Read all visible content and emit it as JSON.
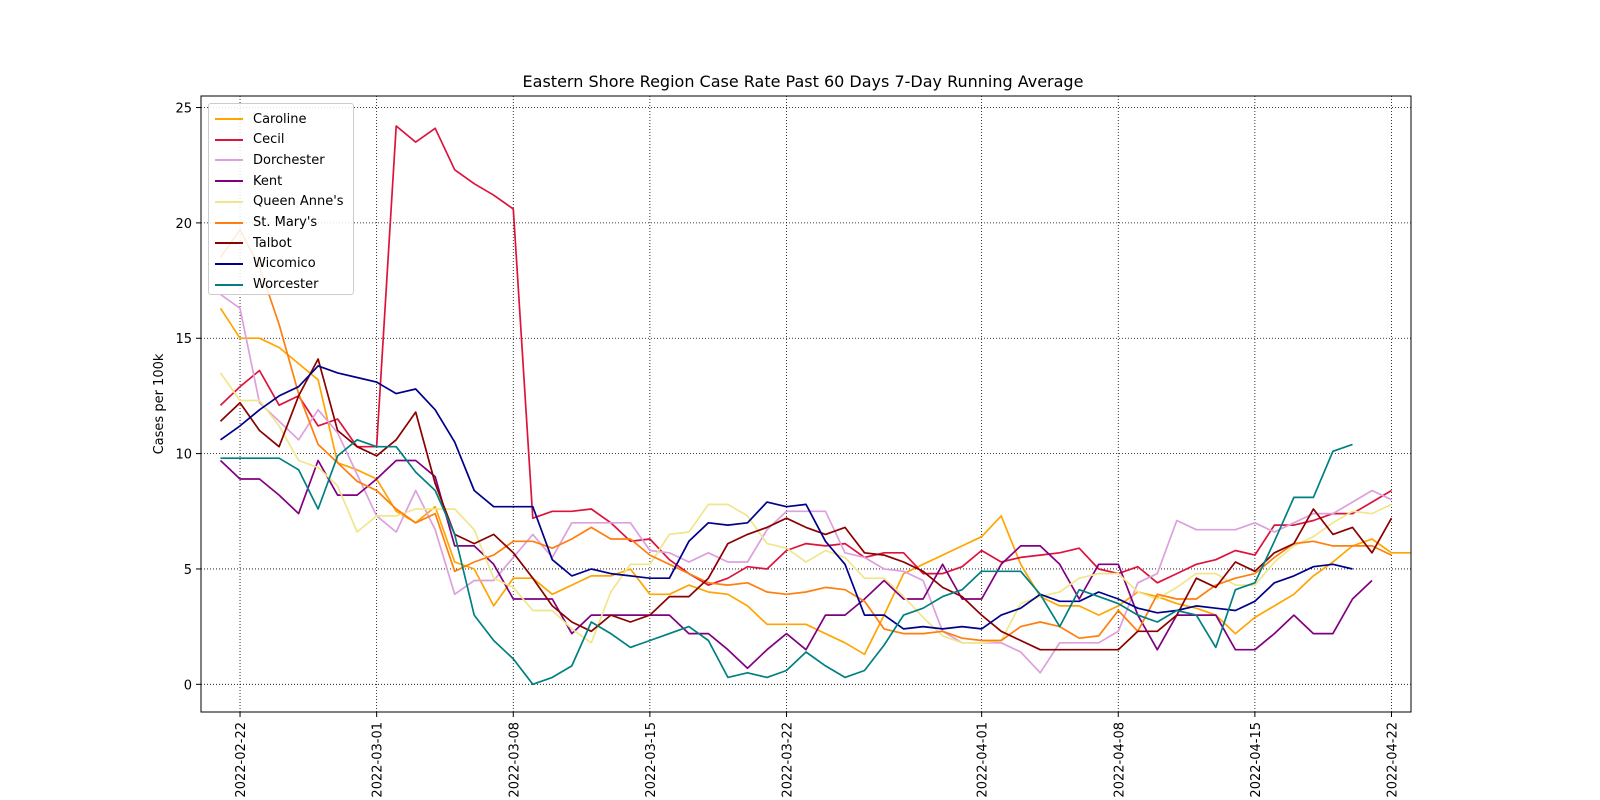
{
  "chart_data": {
    "type": "line",
    "title": "Eastern Shore Region Case Rate  Past 60 Days 7-Day Running Average",
    "ylabel": "Cases per 100k",
    "xlabel": "",
    "xlim": [
      "2022-02-20",
      "2022-04-23"
    ],
    "ylim": [
      -1.2,
      25.5
    ],
    "yticks": [
      0,
      5,
      10,
      15,
      20,
      25
    ],
    "ytick_labels": [
      "0",
      "5",
      "10",
      "15",
      "20",
      "25"
    ],
    "xticks": [
      "2022-02-22",
      "2022-03-01",
      "2022-03-08",
      "2022-03-15",
      "2022-03-22",
      "2022-04-01",
      "2022-04-08",
      "2022-04-15",
      "2022-04-22"
    ],
    "grid": true,
    "legend_position": "upper-left",
    "start_date": "2022-02-21",
    "series": [
      {
        "name": "Caroline",
        "color": "#ffa500",
        "values": [
          16.3,
          15.0,
          15.0,
          14.6,
          13.9,
          13.2,
          9.6,
          9.3,
          8.9,
          7.5,
          7.0,
          7.7,
          5.3,
          5.0,
          3.4,
          4.6,
          4.6,
          3.9,
          4.3,
          4.7,
          4.7,
          5.0,
          3.9,
          3.9,
          4.3,
          4.0,
          3.9,
          3.4,
          2.6,
          2.6,
          2.6,
          2.2,
          1.8,
          1.3,
          3.0,
          4.8,
          5.2,
          5.6,
          6.0,
          6.4,
          7.3,
          5.2,
          3.8,
          3.4,
          3.4,
          3.0,
          3.4,
          4.0,
          3.8,
          3.5,
          3.3,
          3.0,
          2.2,
          2.9,
          3.4,
          3.9,
          4.7,
          5.3,
          6.0,
          6.3,
          5.7,
          5.7
        ]
      },
      {
        "name": "Cecil",
        "color": "#dc143c",
        "values": [
          12.1,
          12.9,
          13.6,
          12.1,
          12.5,
          11.2,
          11.5,
          10.3,
          10.3,
          24.2,
          23.5,
          24.1,
          22.3,
          21.7,
          21.2,
          20.6,
          7.2,
          7.5,
          7.5,
          7.6,
          7.0,
          6.2,
          6.3,
          5.4,
          4.8,
          4.3,
          4.6,
          5.1,
          5.0,
          5.8,
          6.1,
          6.0,
          6.1,
          5.5,
          5.7,
          5.7,
          4.8,
          4.8,
          5.1,
          5.8,
          5.3,
          5.5,
          5.6,
          5.7,
          5.9,
          5.0,
          4.8,
          5.1,
          4.4,
          4.8,
          5.2,
          5.4,
          5.8,
          5.6,
          6.9,
          6.9,
          7.1,
          7.4,
          7.4,
          7.9,
          8.4
        ]
      },
      {
        "name": "Dorchester",
        "color": "#dda0dd",
        "values": [
          16.9,
          16.3,
          12.2,
          11.4,
          10.6,
          11.9,
          10.9,
          9.1,
          7.3,
          6.6,
          8.4,
          6.7,
          3.9,
          4.5,
          4.5,
          5.5,
          6.5,
          5.5,
          7.0,
          7.0,
          7.0,
          7.0,
          5.8,
          5.7,
          5.3,
          5.7,
          5.3,
          5.3,
          6.7,
          7.5,
          7.5,
          7.5,
          5.7,
          5.5,
          5.0,
          4.9,
          4.5,
          2.3,
          1.8,
          1.8,
          1.8,
          1.4,
          0.5,
          1.8,
          1.8,
          1.8,
          2.3,
          4.4,
          4.8,
          7.1,
          6.7,
          6.7,
          6.7,
          7.0,
          6.6,
          7.0,
          7.4,
          7.4,
          7.9,
          8.4,
          8.0
        ]
      },
      {
        "name": "Kent",
        "color": "#800080",
        "values": [
          9.7,
          8.9,
          8.9,
          8.2,
          7.4,
          9.7,
          8.2,
          8.2,
          8.9,
          9.7,
          9.7,
          9.0,
          6.0,
          6.0,
          5.2,
          3.7,
          3.7,
          3.7,
          2.2,
          3.0,
          3.0,
          3.0,
          3.0,
          3.0,
          2.2,
          2.2,
          1.5,
          0.7,
          1.5,
          2.2,
          1.5,
          3.0,
          3.0,
          3.7,
          4.5,
          3.7,
          3.7,
          5.2,
          3.7,
          3.7,
          5.2,
          6.0,
          6.0,
          5.2,
          3.7,
          5.2,
          5.2,
          3.0,
          1.5,
          3.0,
          3.0,
          3.0,
          1.5,
          1.5,
          2.2,
          3.0,
          2.2,
          2.2,
          3.7,
          4.5
        ]
      },
      {
        "name": "Queen Anne's",
        "color": "#f0e68c",
        "values": [
          13.5,
          12.3,
          12.3,
          11.2,
          9.7,
          9.4,
          8.6,
          6.6,
          7.3,
          7.3,
          7.6,
          7.6,
          7.6,
          6.7,
          4.6,
          4.2,
          3.2,
          3.2,
          2.4,
          1.8,
          4.0,
          5.2,
          5.2,
          6.5,
          6.6,
          7.8,
          7.8,
          7.3,
          6.1,
          5.9,
          5.3,
          5.8,
          5.5,
          4.6,
          4.6,
          3.8,
          2.9,
          2.1,
          1.8,
          1.8,
          1.9,
          3.5,
          3.8,
          4.0,
          4.6,
          4.8,
          4.8,
          4.0,
          3.7,
          4.2,
          4.8,
          4.8,
          4.3,
          4.3,
          5.3,
          6.0,
          6.4,
          7.0,
          7.5,
          7.4,
          7.8
        ]
      },
      {
        "name": "St. Mary's",
        "color": "#ff7f0e",
        "values": [
          18.5,
          19.7,
          18.1,
          15.6,
          12.6,
          10.4,
          9.6,
          8.8,
          8.4,
          7.6,
          7.0,
          7.4,
          4.9,
          5.3,
          5.6,
          6.2,
          6.2,
          5.9,
          6.3,
          6.8,
          6.3,
          6.3,
          5.6,
          5.2,
          4.8,
          4.4,
          4.3,
          4.4,
          4.0,
          3.9,
          4.0,
          4.2,
          4.1,
          3.6,
          2.4,
          2.2,
          2.2,
          2.3,
          2.0,
          1.9,
          1.9,
          2.5,
          2.7,
          2.5,
          2.0,
          2.1,
          3.2,
          2.3,
          3.9,
          3.7,
          3.7,
          4.3,
          4.6,
          4.8,
          5.5,
          6.1,
          6.2,
          6.0,
          6.0,
          6.0,
          5.6
        ]
      },
      {
        "name": "Talbot",
        "color": "#8b0000",
        "values": [
          11.4,
          12.2,
          11.0,
          10.3,
          12.5,
          14.1,
          11.0,
          10.3,
          9.9,
          10.6,
          11.8,
          8.7,
          6.5,
          6.1,
          6.5,
          5.7,
          4.6,
          3.4,
          2.7,
          2.3,
          3.0,
          2.7,
          3.0,
          3.8,
          3.8,
          4.6,
          6.1,
          6.5,
          6.8,
          7.2,
          6.8,
          6.5,
          6.8,
          5.7,
          5.6,
          5.3,
          4.9,
          4.2,
          3.8,
          3.0,
          2.3,
          1.9,
          1.5,
          1.5,
          1.5,
          1.5,
          1.5,
          2.3,
          2.3,
          3.0,
          4.6,
          4.2,
          5.3,
          4.9,
          5.7,
          6.1,
          7.6,
          6.5,
          6.8,
          5.7,
          7.2
        ]
      },
      {
        "name": "Wicomico",
        "color": "#00008b",
        "values": [
          10.6,
          11.2,
          11.9,
          12.5,
          12.9,
          13.8,
          13.5,
          13.3,
          13.1,
          12.6,
          12.8,
          11.9,
          10.5,
          8.4,
          7.7,
          7.7,
          7.7,
          5.4,
          4.7,
          5.0,
          4.8,
          4.7,
          4.6,
          4.6,
          6.2,
          7.0,
          6.9,
          7.0,
          7.9,
          7.7,
          7.8,
          6.2,
          5.2,
          3.0,
          3.0,
          2.4,
          2.5,
          2.4,
          2.5,
          2.4,
          3.0,
          3.3,
          3.9,
          3.6,
          3.6,
          4.0,
          3.7,
          3.3,
          3.1,
          3.2,
          3.4,
          3.3,
          3.2,
          3.6,
          4.4,
          4.7,
          5.1,
          5.2,
          5.0
        ]
      },
      {
        "name": "Worcester",
        "color": "#008080",
        "values": [
          9.8,
          9.8,
          9.8,
          9.8,
          9.3,
          7.6,
          9.9,
          10.6,
          10.3,
          10.3,
          9.2,
          8.4,
          6.5,
          3.0,
          1.9,
          1.1,
          0.0,
          0.3,
          0.8,
          2.7,
          2.2,
          1.6,
          1.9,
          2.2,
          2.5,
          1.9,
          0.3,
          0.5,
          0.3,
          0.6,
          1.4,
          0.8,
          0.3,
          0.6,
          1.7,
          3.0,
          3.3,
          3.8,
          4.1,
          4.9,
          4.9,
          4.9,
          3.9,
          2.5,
          4.1,
          3.8,
          3.5,
          3.0,
          2.7,
          3.2,
          3.0,
          1.6,
          4.1,
          4.4,
          6.2,
          8.1,
          8.1,
          10.1,
          10.4
        ]
      }
    ]
  }
}
